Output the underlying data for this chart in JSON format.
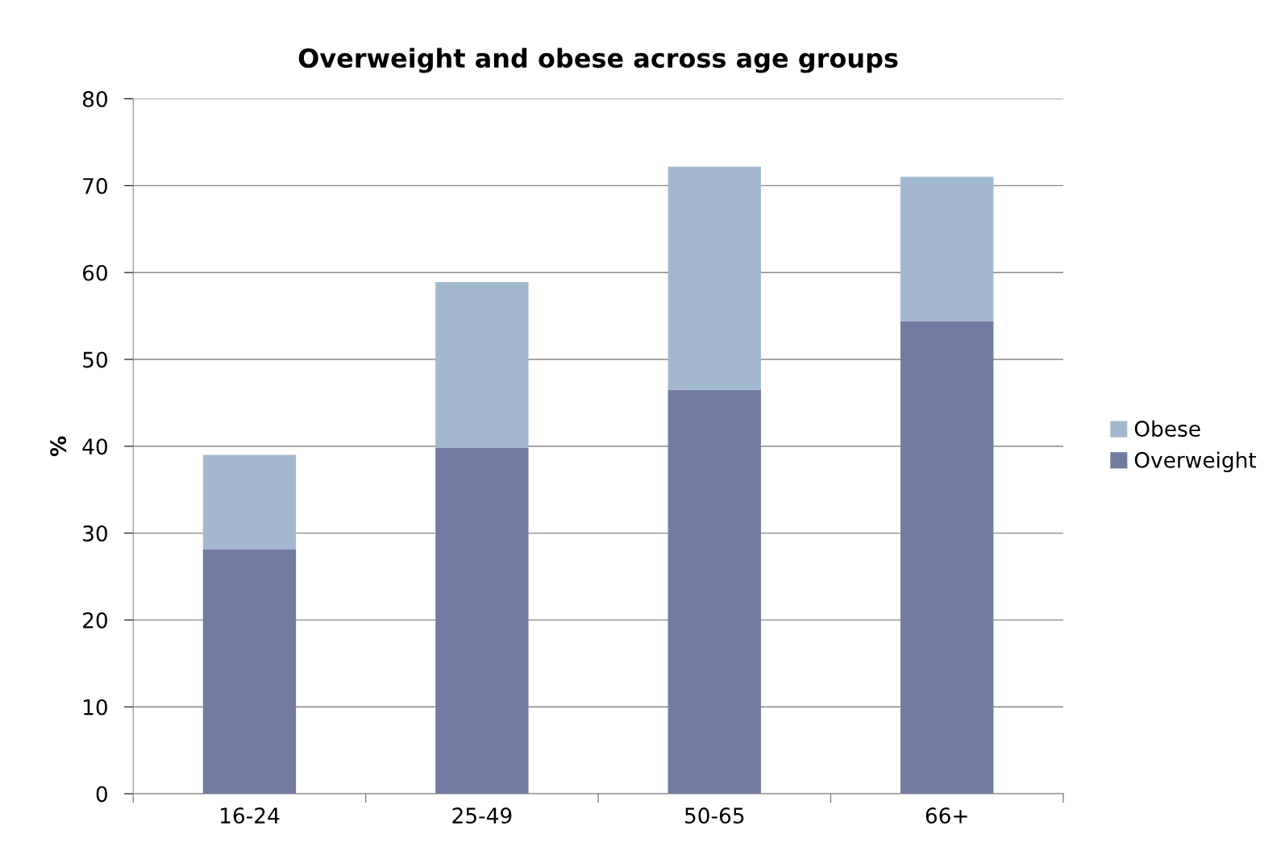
{
  "chart_data": {
    "type": "bar",
    "title": "Overweight and obese across age groups",
    "ylabel": "%",
    "categories": [
      "16-24",
      "25-49",
      "50-65",
      "66+"
    ],
    "series": [
      {
        "name": "Overweight",
        "color": "#737ba0",
        "values": [
          28.1,
          39.8,
          46.5,
          54.4
        ]
      },
      {
        "name": "Obese",
        "color": "#a2b8cf",
        "values": [
          10.9,
          19.1,
          25.7,
          16.6
        ]
      }
    ],
    "stacked": true,
    "ylim": [
      0,
      80
    ],
    "yticks": [
      0,
      10,
      20,
      30,
      40,
      50,
      60,
      70,
      80
    ],
    "grid": "y",
    "legend": "right"
  }
}
